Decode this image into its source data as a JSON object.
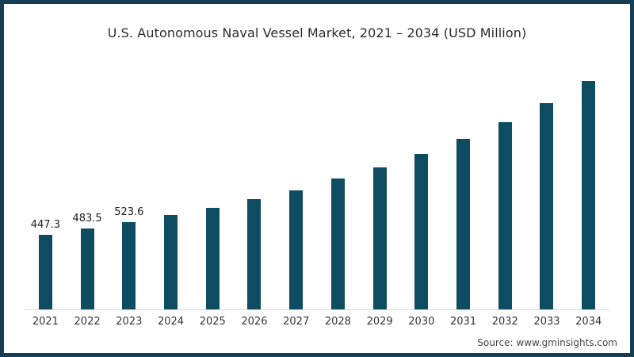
{
  "title": "U.S. Autonomous Naval Vessel Market, 2021 – 2034 (USD Million)",
  "source": "Source: www.gminsights.com",
  "frame": {
    "border_color": "#153d54",
    "background_color": "#ffffff"
  },
  "chart_data": {
    "type": "bar",
    "title": "U.S. Autonomous Naval Vessel Market, 2021 – 2034 (USD Million)",
    "categories": [
      "2021",
      "2022",
      "2023",
      "2024",
      "2025",
      "2026",
      "2027",
      "2028",
      "2029",
      "2030",
      "2031",
      "2032",
      "2033",
      "2034"
    ],
    "values": [
      447.3,
      483.5,
      523.6,
      566,
      609,
      661,
      714,
      785,
      852,
      933,
      1023,
      1123,
      1237,
      1370
    ],
    "data_labels": [
      "447.3",
      "483.5",
      "523.6",
      "",
      "",
      "",
      "",
      "",
      "",
      "",
      "",
      "",
      "",
      ""
    ],
    "xlabel": "",
    "ylabel": "",
    "ylim": [
      0,
      1400
    ],
    "grid": false,
    "legend": false,
    "bar_color": "#0d4c61",
    "axis_line_color": "#d9d9d9",
    "data_label_color": "#1c1c1c",
    "tick_label_color": "#333333"
  }
}
